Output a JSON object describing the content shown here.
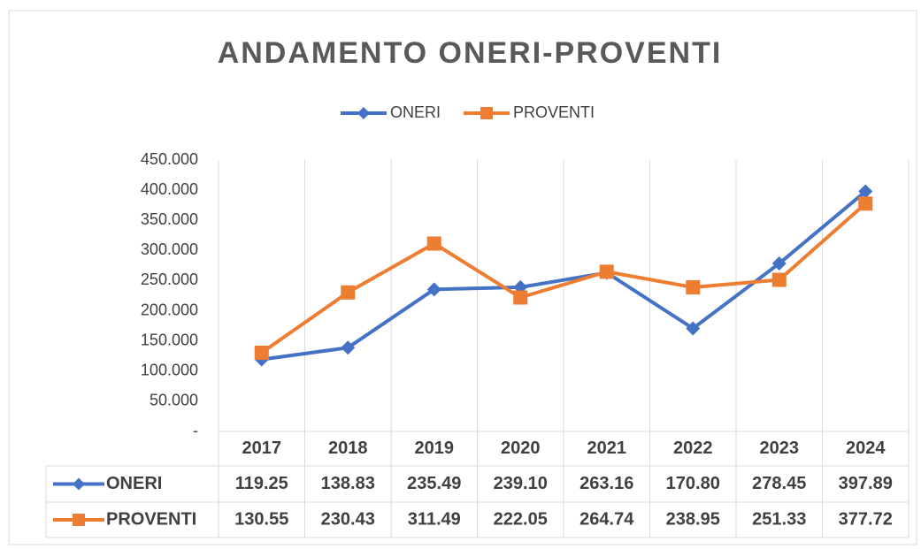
{
  "chart_data": {
    "type": "line",
    "title": "ANDAMENTO ONERI-PROVENTI",
    "categories": [
      "2017",
      "2018",
      "2019",
      "2020",
      "2021",
      "2022",
      "2023",
      "2024"
    ],
    "series": [
      {
        "name": "ONERI",
        "color": "#4472c4",
        "marker": "diamond",
        "values": [
          119.25,
          138.83,
          235.49,
          239.1,
          263.16,
          170.8,
          278.45,
          397.89
        ],
        "value_labels": [
          "119.25",
          "138.83",
          "235.49",
          "239.10",
          "263.16",
          "170.80",
          "278.45",
          "397.89"
        ]
      },
      {
        "name": "PROVENTI",
        "color": "#ed7d31",
        "marker": "square",
        "values": [
          130.55,
          230.43,
          311.49,
          222.05,
          264.74,
          238.95,
          251.33,
          377.72
        ],
        "value_labels": [
          "130.55",
          "230.43",
          "311.49",
          "222.05",
          "264.74",
          "238.95",
          "251.33",
          "377.72"
        ]
      }
    ],
    "ylim": [
      0,
      450
    ],
    "yticks": [
      {
        "value": 0,
        "label": "-"
      },
      {
        "value": 50,
        "label": "50.000"
      },
      {
        "value": 100,
        "label": "100.000"
      },
      {
        "value": 150,
        "label": "150.000"
      },
      {
        "value": 200,
        "label": "200.000"
      },
      {
        "value": 250,
        "label": "250.000"
      },
      {
        "value": 300,
        "label": "300.000"
      },
      {
        "value": 350,
        "label": "350.000"
      },
      {
        "value": 400,
        "label": "400.000"
      },
      {
        "value": 450,
        "label": "450.000"
      }
    ],
    "legend": "top",
    "data_table": true
  }
}
